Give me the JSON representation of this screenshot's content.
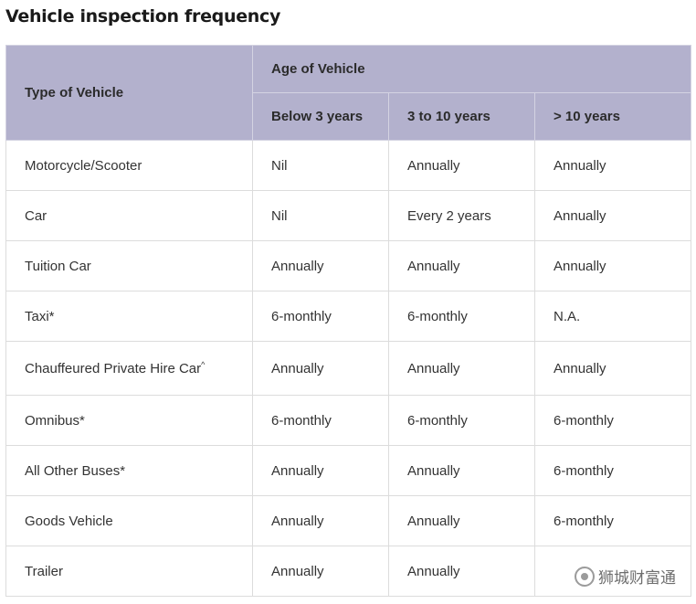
{
  "title": "Vehicle inspection frequency",
  "table": {
    "header": {
      "type_label": "Type of Vehicle",
      "age_label": "Age of Vehicle",
      "age_columns": [
        "Below 3 years",
        "3 to 10 years",
        "> 10 years"
      ]
    },
    "rows": [
      {
        "type": "Motorcycle/Scooter",
        "mark": "",
        "values": [
          "Nil",
          "Annually",
          "Annually"
        ]
      },
      {
        "type": "Car",
        "mark": "",
        "values": [
          "Nil",
          "Every 2 years",
          "Annually"
        ]
      },
      {
        "type": "Tuition Car",
        "mark": "",
        "values": [
          "Annually",
          "Annually",
          "Annually"
        ]
      },
      {
        "type": "Taxi*",
        "mark": "",
        "values": [
          "6-monthly",
          "6-monthly",
          "N.A."
        ]
      },
      {
        "type": "Chauffeured Private Hire Car",
        "mark": "^",
        "values": [
          "Annually",
          "Annually",
          "Annually"
        ]
      },
      {
        "type": "Omnibus*",
        "mark": "",
        "values": [
          "6-monthly",
          "6-monthly",
          "6-monthly"
        ]
      },
      {
        "type": "All Other Buses*",
        "mark": "",
        "values": [
          "Annually",
          "Annually",
          "6-monthly"
        ]
      },
      {
        "type": "Goods Vehicle",
        "mark": "",
        "values": [
          "Annually",
          "Annually",
          "6-monthly"
        ]
      },
      {
        "type": "Trailer",
        "mark": "",
        "values": [
          "Annually",
          "Annually",
          ""
        ]
      }
    ]
  },
  "watermark": {
    "text": "狮城财富通",
    "icon": "wechat-account-icon"
  }
}
